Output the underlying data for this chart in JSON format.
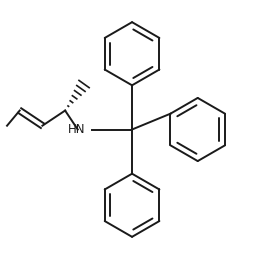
{
  "bg_color": "#ffffff",
  "line_color": "#1a1a1a",
  "line_width": 1.4,
  "fig_width": 2.54,
  "fig_height": 2.59,
  "dpi": 100,
  "xlim": [
    0,
    10
  ],
  "ylim": [
    0,
    10.2
  ]
}
